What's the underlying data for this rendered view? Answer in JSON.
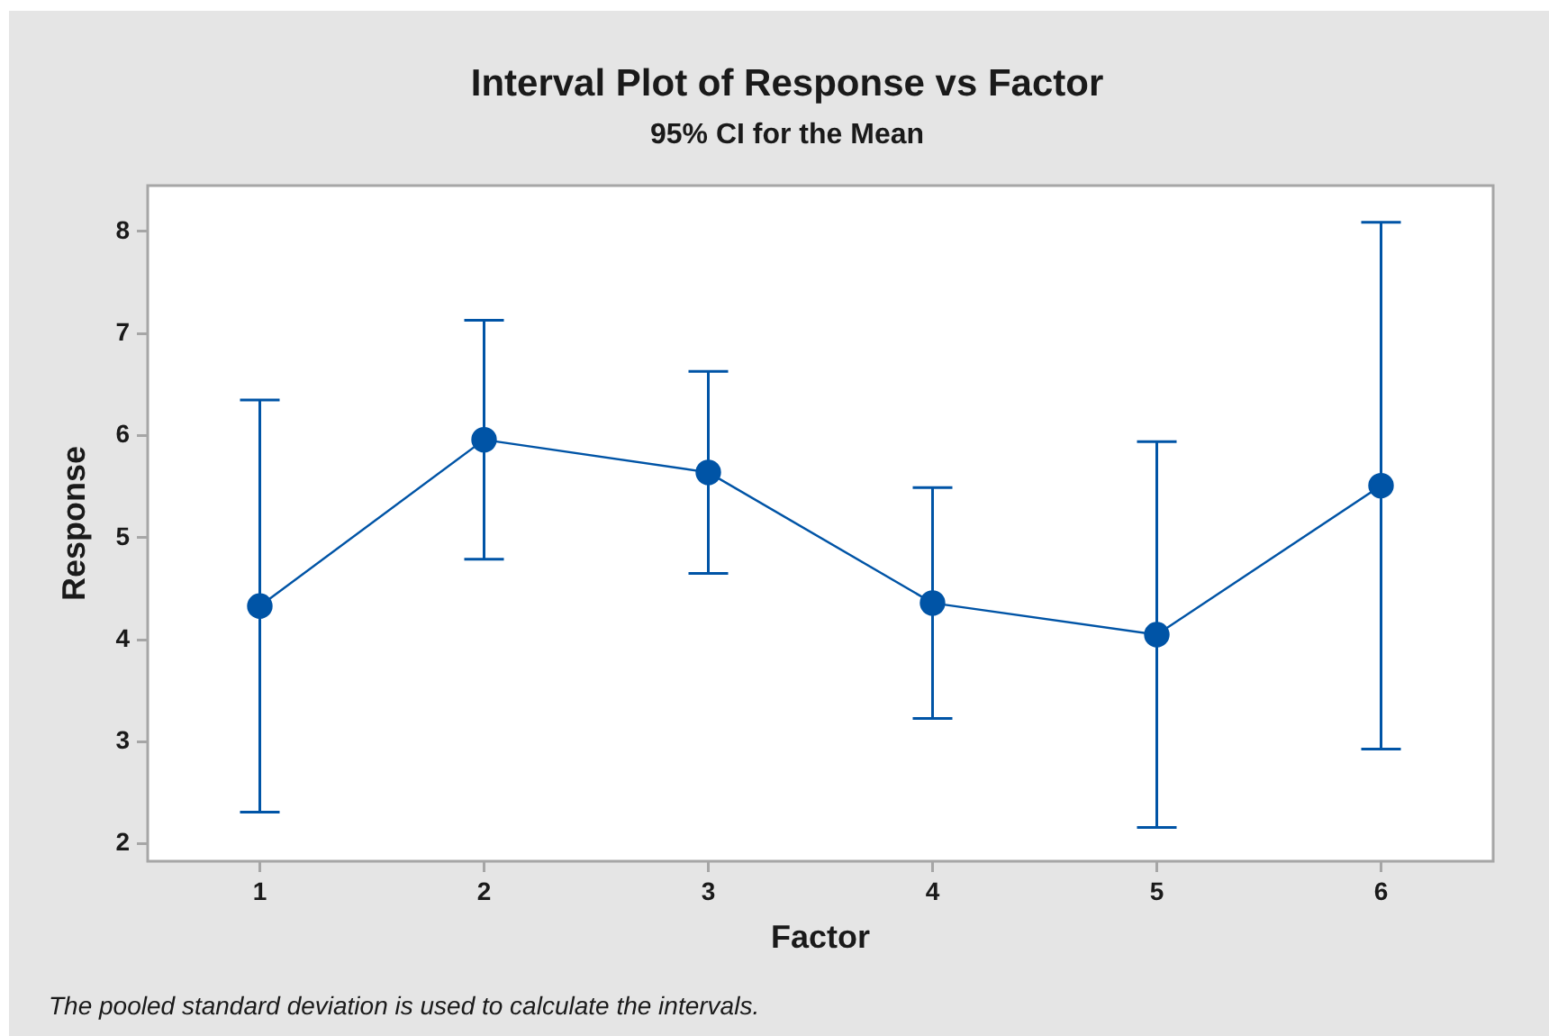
{
  "chart_data": {
    "type": "line",
    "title": "Interval Plot of Response vs Factor",
    "subtitle": "95% CI for the Mean",
    "xlabel": "Factor",
    "ylabel": "Response",
    "categories": [
      "1",
      "2",
      "3",
      "4",
      "5",
      "6"
    ],
    "series": [
      {
        "color": "#0054a6",
        "values": [
          4.33,
          5.96,
          5.64,
          4.36,
          4.05,
          5.51
        ],
        "errors": [
          2.02,
          1.17,
          0.99,
          1.13,
          1.89,
          2.58
        ]
      }
    ],
    "ylim": [
      1.83,
      8.45
    ],
    "yticks": [
      2,
      3,
      4,
      5,
      6,
      7,
      8
    ],
    "grid": false,
    "legend": false,
    "marker": "circle",
    "line_style": "solid",
    "annotations": [
      "The pooled standard deviation is used to calculate the intervals."
    ]
  }
}
